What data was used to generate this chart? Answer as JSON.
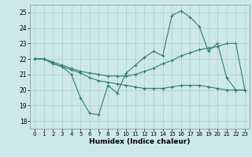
{
  "xlabel": "Humidex (Indice chaleur)",
  "xlim": [
    -0.5,
    23.5
  ],
  "ylim": [
    17.5,
    25.5
  ],
  "xticks": [
    0,
    1,
    2,
    3,
    4,
    5,
    6,
    7,
    8,
    9,
    10,
    11,
    12,
    13,
    14,
    15,
    16,
    17,
    18,
    19,
    20,
    21,
    22,
    23
  ],
  "yticks": [
    18,
    19,
    20,
    21,
    22,
    23,
    24,
    25
  ],
  "bg_color": "#cde8ea",
  "line_color": "#2e7d6e",
  "grid_color": "#aacdd0",
  "line1_x": [
    0,
    1,
    2,
    3,
    4,
    5,
    6,
    7,
    8,
    9,
    10,
    11,
    12,
    13,
    14,
    15,
    16,
    17,
    18,
    19,
    20,
    21,
    22,
    23
  ],
  "line1_y": [
    22.0,
    22.0,
    21.7,
    21.5,
    21.0,
    19.5,
    18.5,
    18.4,
    20.3,
    19.8,
    21.1,
    21.6,
    22.1,
    22.5,
    22.2,
    24.8,
    25.1,
    24.7,
    24.1,
    22.5,
    23.0,
    20.8,
    20.0,
    20.0
  ],
  "line2_x": [
    0,
    1,
    2,
    3,
    4,
    5,
    6,
    7,
    8,
    9,
    10,
    11,
    12,
    13,
    14,
    15,
    16,
    17,
    18,
    19,
    20,
    21,
    22,
    23
  ],
  "line2_y": [
    22.0,
    22.0,
    21.8,
    21.6,
    21.4,
    21.2,
    21.1,
    21.0,
    20.9,
    20.9,
    20.9,
    21.0,
    21.2,
    21.4,
    21.7,
    21.9,
    22.2,
    22.4,
    22.6,
    22.7,
    22.8,
    23.0,
    23.0,
    20.0
  ],
  "line3_x": [
    0,
    1,
    2,
    3,
    4,
    5,
    6,
    7,
    8,
    9,
    10,
    11,
    12,
    13,
    14,
    15,
    16,
    17,
    18,
    19,
    20,
    21,
    22,
    23
  ],
  "line3_y": [
    22.0,
    22.0,
    21.7,
    21.5,
    21.3,
    21.1,
    20.8,
    20.6,
    20.5,
    20.4,
    20.3,
    20.2,
    20.1,
    20.1,
    20.1,
    20.2,
    20.3,
    20.3,
    20.3,
    20.2,
    20.1,
    20.0,
    20.0,
    20.0
  ],
  "marker": "+",
  "markersize": 3,
  "linewidth": 0.8
}
